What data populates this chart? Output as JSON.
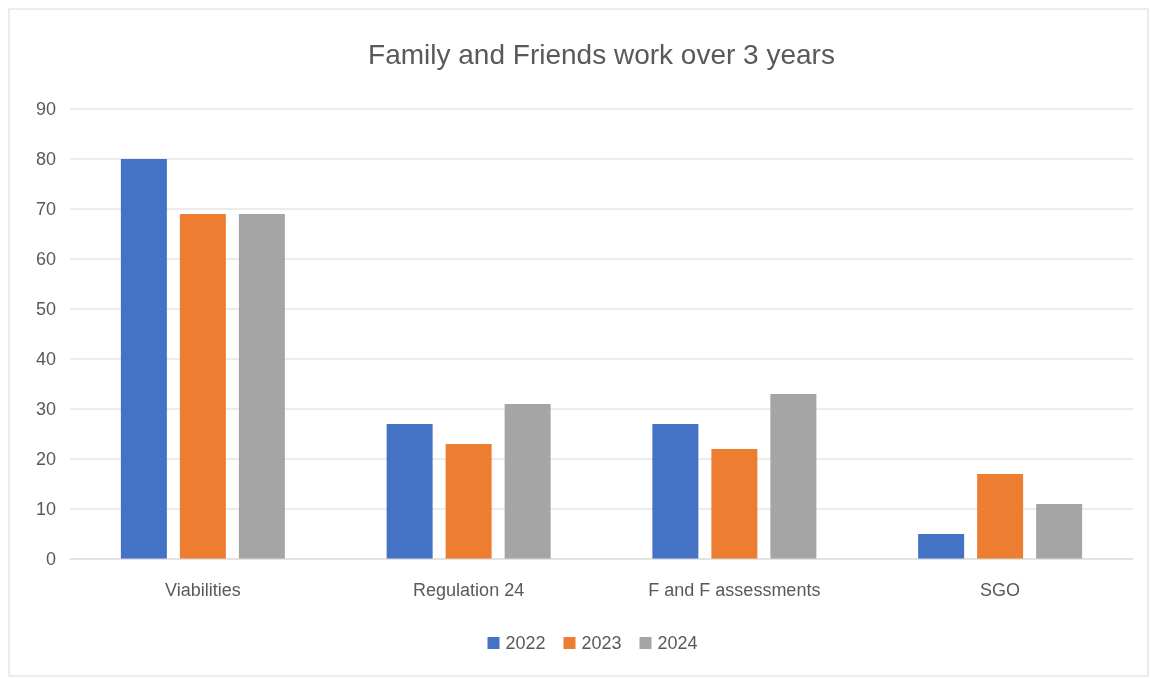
{
  "chart_data": {
    "type": "bar",
    "title": "Family and Friends work over 3 years",
    "categories": [
      "Viabilities",
      "Regulation 24",
      "F and F assessments",
      "SGO"
    ],
    "series": [
      {
        "name": "2022",
        "color": "#4472c4",
        "values": [
          80,
          27,
          27,
          5
        ]
      },
      {
        "name": "2023",
        "color": "#ed7d31",
        "values": [
          69,
          23,
          22,
          17
        ]
      },
      {
        "name": "2024",
        "color": "#a5a5a5",
        "values": [
          69,
          31,
          33,
          11
        ]
      }
    ],
    "ylim": [
      0,
      90
    ],
    "yticks": [
      0,
      10,
      20,
      30,
      40,
      50,
      60,
      70,
      80,
      90
    ],
    "grid": "y",
    "legend": "bottom"
  }
}
